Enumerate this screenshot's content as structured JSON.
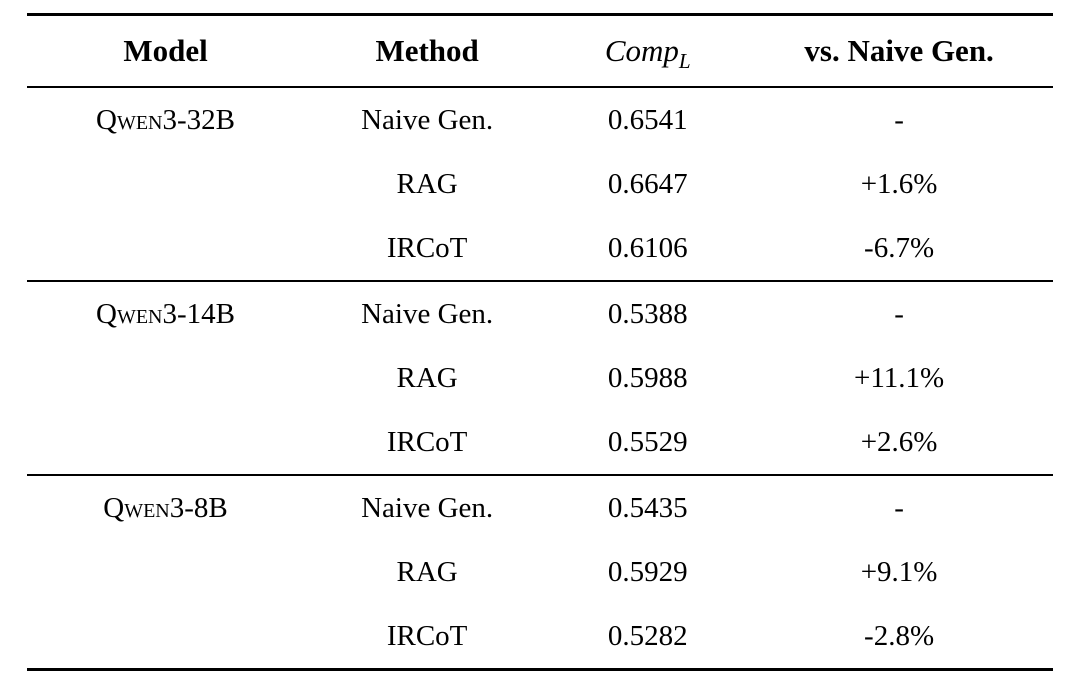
{
  "table": {
    "header": {
      "model": "Model",
      "method": "Method",
      "comp_main": "Comp",
      "comp_sub": "L",
      "vs": "vs. Naive Gen."
    },
    "groups": [
      {
        "model": "Qwen3-32B",
        "rows": [
          {
            "method": "Naive Gen.",
            "comp": "0.6541",
            "vs": "-"
          },
          {
            "method": "RAG",
            "comp": "0.6647",
            "vs": "+1.6%"
          },
          {
            "method": "IRCoT",
            "comp": "0.6106",
            "vs": "-6.7%"
          }
        ]
      },
      {
        "model": "Qwen3-14B",
        "rows": [
          {
            "method": "Naive Gen.",
            "comp": "0.5388",
            "vs": "-"
          },
          {
            "method": "RAG",
            "comp": "0.5988",
            "vs": "+11.1%"
          },
          {
            "method": "IRCoT",
            "comp": "0.5529",
            "vs": "+2.6%"
          }
        ]
      },
      {
        "model": "Qwen3-8B",
        "rows": [
          {
            "method": "Naive Gen.",
            "comp": "0.5435",
            "vs": "-"
          },
          {
            "method": "RAG",
            "comp": "0.5929",
            "vs": "+9.1%"
          },
          {
            "method": "IRCoT",
            "comp": "0.5282",
            "vs": "-2.8%"
          }
        ]
      }
    ],
    "colors": {
      "text": "#000000",
      "background": "#ffffff",
      "rule": "#000000"
    }
  }
}
